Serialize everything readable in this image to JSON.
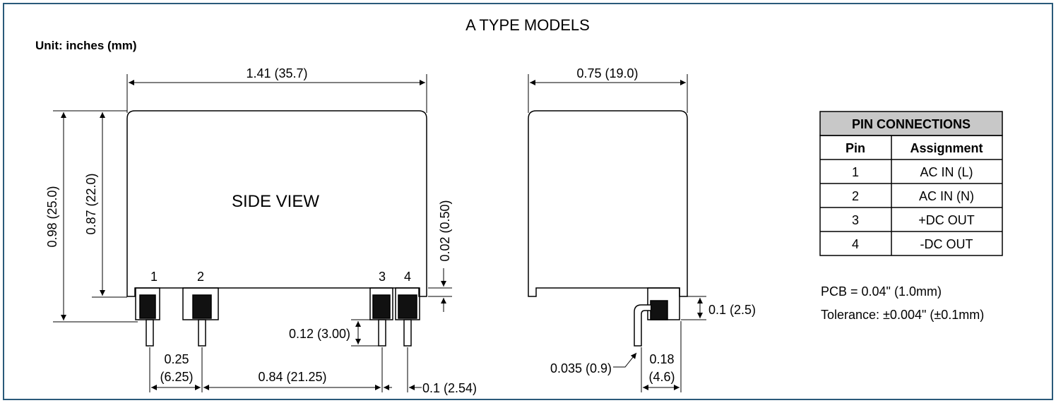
{
  "header": {
    "title": "A TYPE MODELS",
    "unit_label": "Unit: inches (mm)"
  },
  "side_view": {
    "label": "SIDE VIEW",
    "width_dim": "1.41 (35.7)",
    "height_dim": "0.98 (25.0)",
    "body_height_dim": "0.87 (22.0)",
    "standoff_dim": "0.02 (0.50)",
    "pin_length_dim": "0.12 (3.00)",
    "pin_spacing_12_a": "0.25",
    "pin_spacing_12_b": "(6.25)",
    "pin_spacing_23": "0.84 (21.25)",
    "pin_spacing_34": "0.1 (2.54)",
    "pins": [
      "1",
      "2",
      "3",
      "4"
    ]
  },
  "end_view": {
    "width_dim": "0.75 (19.0)",
    "pin_height_dim": "0.1 (2.5)",
    "pin_diameter_dim": "0.035 (0.9)",
    "pin_offset_a": "0.18",
    "pin_offset_b": "(4.6)"
  },
  "pin_table": {
    "title": "PIN CONNECTIONS",
    "headers": [
      "Pin",
      "Assignment"
    ],
    "rows": [
      {
        "pin": "1",
        "assignment": "AC IN (L)"
      },
      {
        "pin": "2",
        "assignment": "AC IN (N)"
      },
      {
        "pin": "3",
        "assignment": "+DC OUT"
      },
      {
        "pin": "4",
        "assignment": "-DC OUT"
      }
    ]
  },
  "notes": {
    "pcb": "PCB = 0.04\" (1.0mm)",
    "tolerance": "Tolerance: ±0.004\" (±0.1mm)"
  },
  "colors": {
    "frame_border": "#2a5a7a",
    "table_header": "#c8c8c8",
    "line": "#000000"
  }
}
